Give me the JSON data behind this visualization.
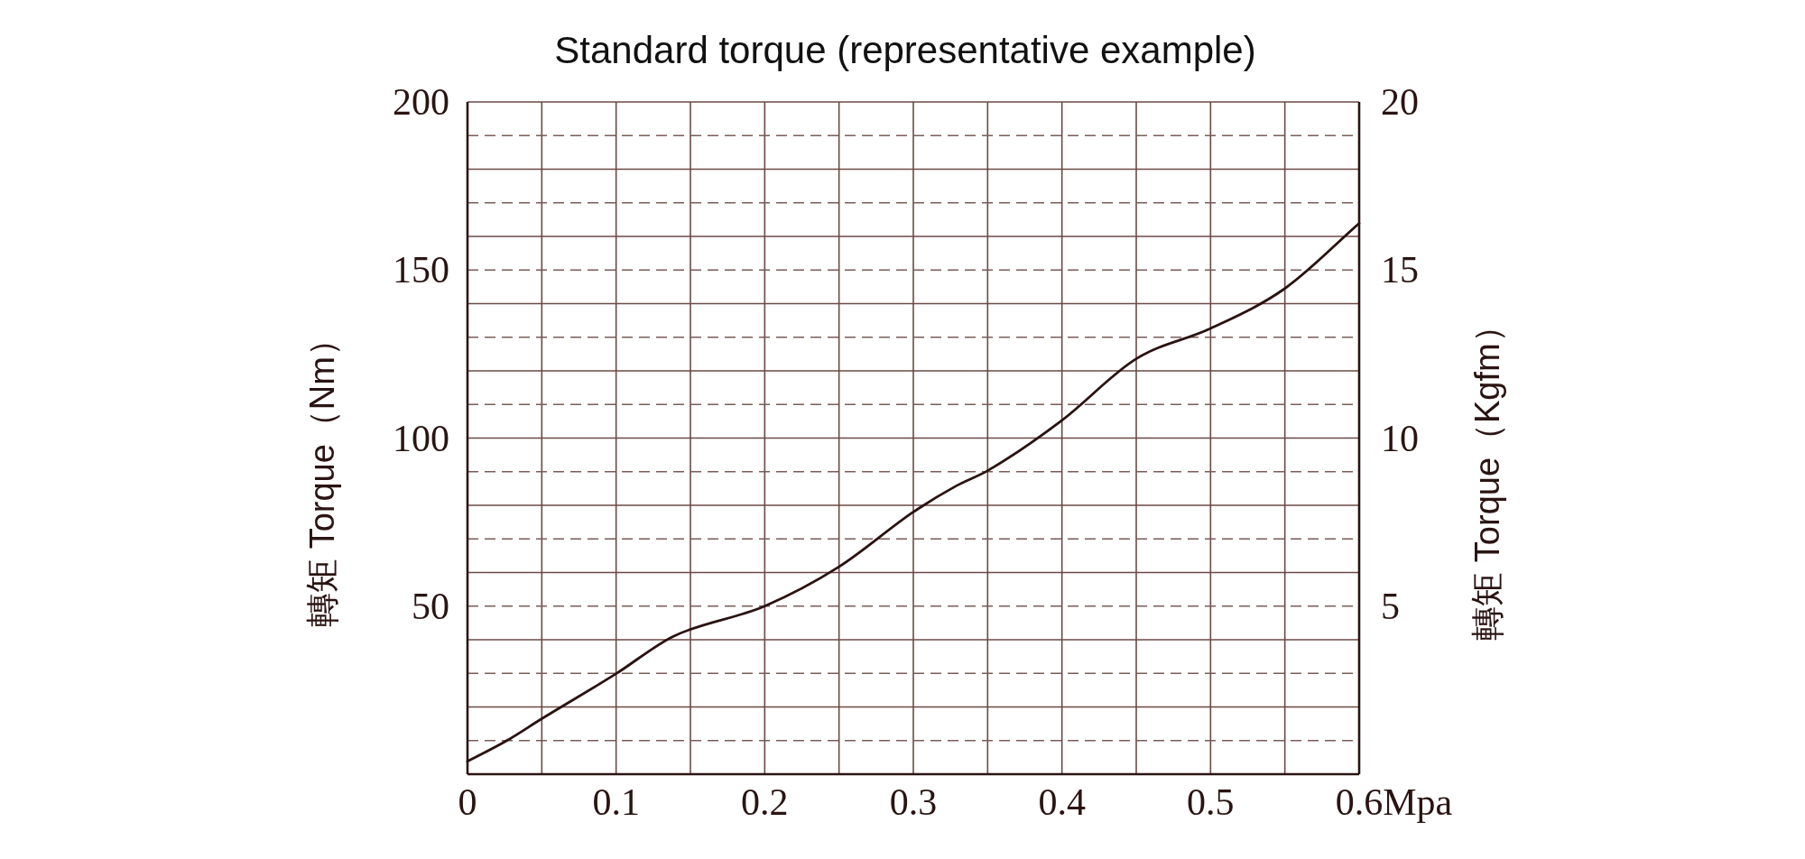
{
  "chart_data": {
    "type": "line",
    "title": "Standard torque (representative example)",
    "xlabel": "Mpa",
    "ylabel": "轉矩 Torque（Nm）",
    "y2label": "轉矩 Torque（Kgfm）",
    "x": [
      0,
      0.0265,
      0.05,
      0.1,
      0.138,
      0.2,
      0.25,
      0.3,
      0.329,
      0.35,
      0.4,
      0.45,
      0.5,
      0.55,
      0.6
    ],
    "series": [
      {
        "color": "#2a1210",
        "values": [
          3.8,
          10,
          16.5,
          29.9,
          40.9,
          50,
          61.7,
          78,
          85.8,
          90.3,
          105.3,
          123.6,
          132.6,
          144.5,
          163.9
        ]
      }
    ],
    "xlim": [
      0,
      0.6
    ],
    "xticks": [
      0,
      {
        "value": 0.05,
        "label": null
      },
      0.1,
      {
        "value": 0.15,
        "label": null
      },
      0.2,
      {
        "value": 0.25,
        "label": null
      },
      0.3,
      {
        "value": 0.35,
        "label": null
      },
      0.4,
      {
        "value": 0.45,
        "label": null
      },
      0.5,
      {
        "value": 0.55,
        "label": null
      },
      0.6
    ],
    "ylim": [
      0,
      200
    ],
    "yticks": [
      50,
      100,
      150,
      200
    ],
    "y2lim": [
      0,
      20
    ],
    "y2ticks": [
      5,
      10,
      15,
      20
    ],
    "grid": "x",
    "marker": "none",
    "line_style": "solid",
    "ref_lines": [
      {
        "axis": "y",
        "value": 10,
        "line_style": "dashed",
        "color": "#7a5c58"
      },
      {
        "axis": "y",
        "value": 20,
        "line_style": "solid",
        "color": "#6b4a46"
      },
      {
        "axis": "y",
        "value": 30,
        "line_style": "dashed",
        "color": "#7a5c58"
      },
      {
        "axis": "y",
        "value": 40,
        "line_style": "solid",
        "color": "#6b4a46"
      },
      {
        "axis": "y",
        "value": 50,
        "line_style": "dashed",
        "color": "#7a5c58"
      },
      {
        "axis": "y",
        "value": 60,
        "line_style": "solid",
        "color": "#6b4a46"
      },
      {
        "axis": "y",
        "value": 70,
        "line_style": "dashed",
        "color": "#7a5c58"
      },
      {
        "axis": "y",
        "value": 80,
        "line_style": "solid",
        "color": "#6b4a46"
      },
      {
        "axis": "y",
        "value": 90,
        "line_style": "dashed",
        "color": "#7a5c58"
      },
      {
        "axis": "y",
        "value": 100,
        "line_style": "solid",
        "color": "#6b4a46"
      },
      {
        "axis": "y",
        "value": 110,
        "line_style": "dashed",
        "color": "#7a5c58"
      },
      {
        "axis": "y",
        "value": 120,
        "line_style": "solid",
        "color": "#6b4a46"
      },
      {
        "axis": "y",
        "value": 130,
        "line_style": "dashed",
        "color": "#7a5c58"
      },
      {
        "axis": "y",
        "value": 140,
        "line_style": "solid",
        "color": "#6b4a46"
      },
      {
        "axis": "y",
        "value": 150,
        "line_style": "dashed",
        "color": "#7a5c58"
      },
      {
        "axis": "y",
        "value": 160,
        "line_style": "solid",
        "color": "#6b4a46"
      },
      {
        "axis": "y",
        "value": 170,
        "line_style": "dashed",
        "color": "#7a5c58"
      },
      {
        "axis": "y",
        "value": 180,
        "line_style": "solid",
        "color": "#6b4a46"
      },
      {
        "axis": "y",
        "value": 190,
        "line_style": "dashed",
        "color": "#7a5c58"
      }
    ]
  }
}
